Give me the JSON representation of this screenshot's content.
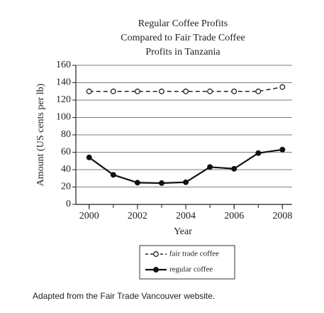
{
  "chart_data": {
    "type": "line",
    "title": [
      "Regular Coffee Profits",
      "Compared to Fair Trade Coffee",
      "Profits in Tanzania"
    ],
    "x_label": "Year",
    "y_label": "Amount (US cents per lb)",
    "x": [
      2000,
      2001,
      2002,
      2003,
      2004,
      2005,
      2006,
      2007,
      2008
    ],
    "series": [
      {
        "name": "fair trade coffee",
        "color": "#222222",
        "dashed": true,
        "marker": "open",
        "values": [
          130,
          130,
          130,
          130,
          130,
          130,
          130,
          130,
          135
        ]
      },
      {
        "name": "regular coffee",
        "color": "#111111",
        "dashed": false,
        "marker": "filled",
        "values": [
          54,
          34,
          25,
          24.5,
          25.5,
          43,
          41,
          59,
          63
        ]
      }
    ],
    "xlim": [
      1999.45,
      2008.4
    ],
    "xticks": [
      2000,
      2002,
      2004,
      2006,
      2008
    ],
    "ylim": [
      0,
      160
    ],
    "yticks": [
      0,
      20,
      40,
      60,
      80,
      100,
      120,
      140,
      160
    ],
    "grid": true,
    "source": "Adapted from the Fair Trade Vancouver website."
  }
}
